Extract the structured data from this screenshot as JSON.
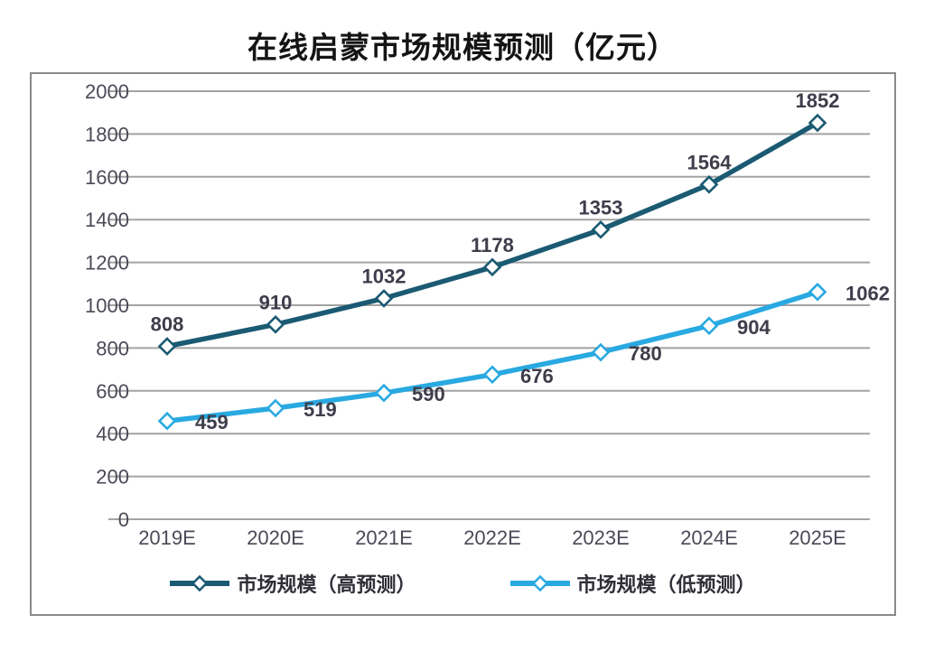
{
  "chart_data": {
    "type": "line",
    "title": "在线启蒙市场规模预测（亿元）",
    "categories": [
      "2019E",
      "2020E",
      "2021E",
      "2022E",
      "2023E",
      "2024E",
      "2025E"
    ],
    "series": [
      {
        "name": "市场规模（高预测）",
        "color": "#1a5a72",
        "marker": "diamond",
        "marker_fill": "#ffffff",
        "values": [
          808,
          910,
          1032,
          1178,
          1353,
          1564,
          1852
        ],
        "label_position": "above"
      },
      {
        "name": "市场规模（低预测）",
        "color": "#29a9e1",
        "marker": "diamond",
        "marker_fill": "#ffffff",
        "values": [
          459,
          519,
          590,
          676,
          780,
          904,
          1062
        ],
        "label_position": "right"
      }
    ],
    "ylim": [
      0,
      2000
    ],
    "y_ticks": [
      0,
      200,
      400,
      600,
      800,
      1000,
      1200,
      1400,
      1600,
      1800,
      2000
    ],
    "grid": true,
    "grid_axis": "horizontal-only",
    "legend_position": "bottom",
    "styles": {
      "grid_color": "#a3a3a3",
      "frame_color": "#8a8a8a",
      "tick_label_color": "#4a4a58",
      "data_label_color": "#3d3d4b",
      "legend_text_color": "#2f2f38",
      "title_color": "#141414"
    }
  }
}
